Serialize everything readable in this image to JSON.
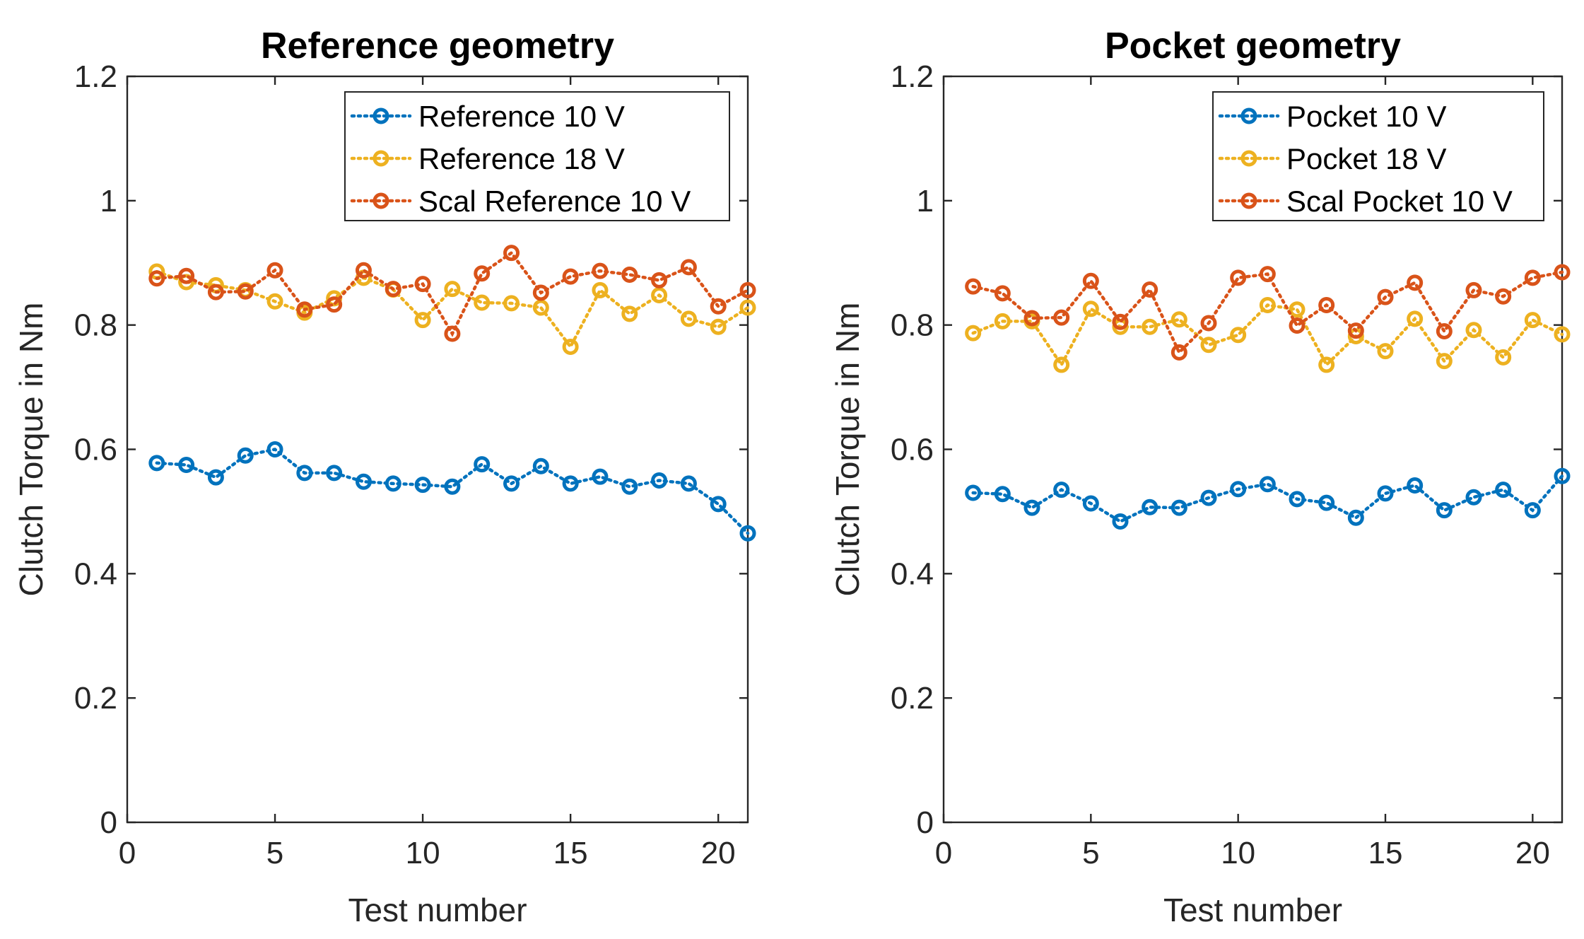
{
  "chart_data": [
    {
      "type": "line",
      "title": "Reference geometry",
      "xlabel": "Test number",
      "ylabel": "Clutch Torque in Nm",
      "xlim": [
        0,
        21
      ],
      "ylim": [
        0,
        1.2
      ],
      "xticks": [
        "0",
        "5",
        "10",
        "15",
        "20"
      ],
      "yticks": [
        "0",
        "0.2",
        "0.4",
        "0.6",
        "0.8",
        "1",
        "1.2"
      ],
      "legend_position": "top-right",
      "x": [
        1,
        2,
        3,
        4,
        5,
        6,
        7,
        8,
        9,
        10,
        11,
        12,
        13,
        14,
        15,
        16,
        17,
        18,
        19,
        20,
        21
      ],
      "series": [
        {
          "name": "Reference 10 V",
          "color": "#0072BD",
          "values": [
            0.578,
            0.575,
            0.555,
            0.59,
            0.6,
            0.562,
            0.562,
            0.548,
            0.545,
            0.543,
            0.54,
            0.576,
            0.545,
            0.573,
            0.545,
            0.556,
            0.54,
            0.55,
            0.545,
            0.512,
            0.465
          ]
        },
        {
          "name": "Reference 18 V",
          "color": "#EDB120",
          "values": [
            0.886,
            0.869,
            0.864,
            0.856,
            0.838,
            0.82,
            0.843,
            0.876,
            0.857,
            0.808,
            0.858,
            0.836,
            0.835,
            0.828,
            0.765,
            0.856,
            0.818,
            0.848,
            0.81,
            0.797,
            0.828
          ]
        },
        {
          "name": "Scal Reference 10 V",
          "color": "#D95319",
          "values": [
            0.875,
            0.879,
            0.853,
            0.854,
            0.888,
            0.825,
            0.833,
            0.888,
            0.858,
            0.866,
            0.786,
            0.883,
            0.916,
            0.852,
            0.878,
            0.887,
            0.881,
            0.872,
            0.893,
            0.83,
            0.856
          ]
        }
      ]
    },
    {
      "type": "line",
      "title": "Pocket geometry",
      "xlabel": "Test number",
      "ylabel": "Clutch Torque in Nm",
      "xlim": [
        0,
        21
      ],
      "ylim": [
        0,
        1.2
      ],
      "xticks": [
        "0",
        "5",
        "10",
        "15",
        "20"
      ],
      "yticks": [
        "0",
        "0.2",
        "0.4",
        "0.6",
        "0.8",
        "1",
        "1.2"
      ],
      "legend_position": "top-right",
      "x": [
        1,
        2,
        3,
        4,
        5,
        6,
        7,
        8,
        9,
        10,
        11,
        12,
        13,
        14,
        15,
        16,
        17,
        18,
        19,
        20,
        21
      ],
      "series": [
        {
          "name": "Pocket 10 V",
          "color": "#0072BD",
          "values": [
            0.53,
            0.528,
            0.506,
            0.535,
            0.513,
            0.484,
            0.507,
            0.506,
            0.522,
            0.536,
            0.544,
            0.52,
            0.514,
            0.49,
            0.529,
            0.542,
            0.502,
            0.523,
            0.535,
            0.502,
            0.557
          ]
        },
        {
          "name": "Pocket 18 V",
          "color": "#EDB120",
          "values": [
            0.787,
            0.806,
            0.806,
            0.736,
            0.826,
            0.797,
            0.797,
            0.809,
            0.768,
            0.784,
            0.832,
            0.825,
            0.736,
            0.782,
            0.758,
            0.81,
            0.742,
            0.792,
            0.748,
            0.808,
            0.785
          ]
        },
        {
          "name": "Scal Pocket 10 V",
          "color": "#D95319",
          "values": [
            0.862,
            0.851,
            0.811,
            0.812,
            0.871,
            0.805,
            0.857,
            0.756,
            0.803,
            0.876,
            0.882,
            0.799,
            0.832,
            0.791,
            0.845,
            0.868,
            0.79,
            0.856,
            0.846,
            0.876,
            0.885
          ]
        }
      ]
    }
  ]
}
